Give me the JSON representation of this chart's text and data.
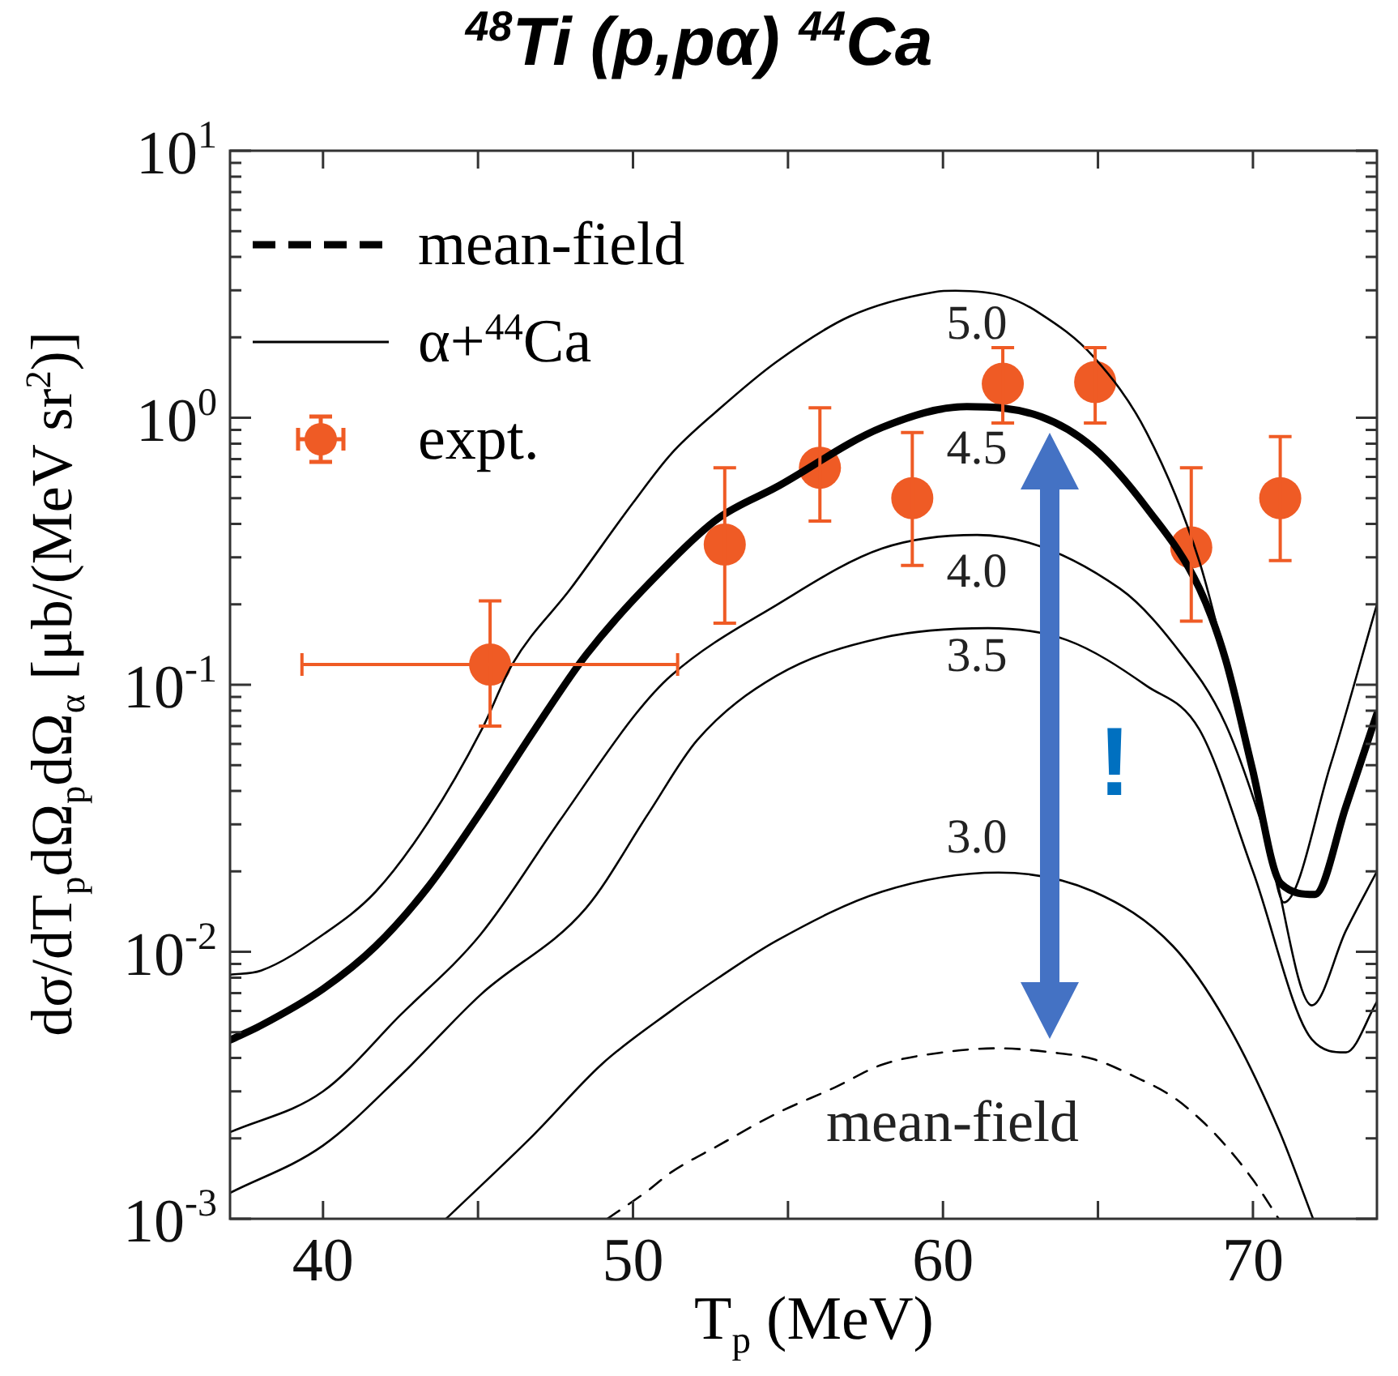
{
  "chart_data": {
    "type": "line",
    "title": "$^{48}$Ti (p,pα) $^{44}$Ca",
    "xlabel": "T$_{p}$ (MeV)",
    "ylabel": "dσ/dT$_{p}$dΩ$_{p}$dΩ$_{α}$ [μb/(MeV sr$^{2}$)]",
    "log": "y",
    "legend": "top left",
    "xlim": [
      37,
      74
    ],
    "xticks": [
      40,
      {
        "value": 45,
        "label": null
      },
      50,
      {
        "value": 55,
        "label": null
      },
      60,
      {
        "value": 65,
        "label": null
      },
      70
    ],
    "ylim": [
      0.001,
      10
    ],
    "yticks": [
      {
        "value": 0.001,
        "label": "10$^{-3}$"
      },
      {
        "value": 0.002,
        "label": null
      },
      {
        "value": 0.003,
        "label": null
      },
      {
        "value": 0.004,
        "label": null
      },
      {
        "value": 0.005,
        "label": null
      },
      {
        "value": 0.006,
        "label": null
      },
      {
        "value": 0.007,
        "label": null
      },
      {
        "value": 0.008,
        "label": null
      },
      {
        "value": 0.009,
        "label": null
      },
      {
        "value": 0.01,
        "label": "10$^{-2}$"
      },
      {
        "value": 0.02,
        "label": null
      },
      {
        "value": 0.03,
        "label": null
      },
      {
        "value": 0.04,
        "label": null
      },
      {
        "value": 0.05,
        "label": null
      },
      {
        "value": 0.06,
        "label": null
      },
      {
        "value": 0.07,
        "label": null
      },
      {
        "value": 0.08,
        "label": null
      },
      {
        "value": 0.09,
        "label": null
      },
      {
        "value": 0.1,
        "label": "10$^{-1}$"
      },
      {
        "value": 0.2,
        "label": null
      },
      {
        "value": 0.3,
        "label": null
      },
      {
        "value": 0.4,
        "label": null
      },
      {
        "value": 0.5,
        "label": null
      },
      {
        "value": 0.6,
        "label": null
      },
      {
        "value": 0.7,
        "label": null
      },
      {
        "value": 0.8,
        "label": null
      },
      {
        "value": 0.9,
        "label": null
      },
      {
        "value": 1,
        "label": "10$^{0}$"
      },
      {
        "value": 2,
        "label": null
      },
      {
        "value": 3,
        "label": null
      },
      {
        "value": 4,
        "label": null
      },
      {
        "value": 5,
        "label": null
      },
      {
        "value": 6,
        "label": null
      },
      {
        "value": 7,
        "label": null
      },
      {
        "value": 8,
        "label": null
      },
      {
        "value": 9,
        "label": null
      },
      {
        "value": 10,
        "label": "10$^{1}$"
      }
    ],
    "series": [
      {
        "name": "mean-field",
        "color": "#000000",
        "line_style": "dashed",
        "marker": "none",
        "x": [
          49.17,
          50.5,
          51.22,
          52.75,
          54.63,
          56.5,
          58.04,
          60,
          61.79,
          63.5,
          64.86,
          66.2,
          67.42,
          68.4,
          69.12,
          70.0,
          70.83
        ],
        "values": [
          0.001,
          0.00128,
          0.00149,
          0.00188,
          0.00248,
          0.0031,
          0.00378,
          0.0042,
          0.00435,
          0.0042,
          0.00396,
          0.0034,
          0.00286,
          0.0023,
          0.00188,
          0.0014,
          0.001
        ]
      },
      {
        "name": "α+$^{44}$Ca",
        "color": "#000000",
        "line_style": "solid",
        "marker": "none",
        "x": [
          37,
          38,
          40,
          41.7,
          43.41,
          45.12,
          46.1,
          48,
          50,
          51.22,
          52.75,
          54.63,
          57,
          59.75,
          60.4,
          62,
          63.1,
          64.86,
          66.57,
          68.27,
          69.5,
          70.5,
          71.0,
          72.5,
          74
        ],
        "values": [
          0.0082,
          0.0085,
          0.0116,
          0.0168,
          0.0308,
          0.068,
          0.119,
          0.23,
          0.48,
          0.73,
          1.07,
          1.62,
          2.4,
          2.96,
          2.99,
          2.85,
          2.47,
          1.69,
          0.88,
          0.29,
          0.08,
          0.025,
          0.0153,
          0.05,
          0.2
        ]
      },
      {
        "color": "#000000",
        "line_style": "solid",
        "marker": "none",
        "x": [
          37,
          38,
          40,
          41.7,
          43.41,
          45.12,
          46.83,
          48.5,
          51.22,
          52.75,
          54.63,
          58.04,
          60.77,
          63.15,
          64.86,
          66.57,
          68.27,
          69.12,
          69.97,
          70.9,
          72.0,
          73,
          74
        ],
        "values": [
          0.00467,
          0.0053,
          0.00726,
          0.0105,
          0.0176,
          0.0338,
          0.068,
          0.13,
          0.29,
          0.42,
          0.55,
          0.92,
          1.1,
          1.01,
          0.77,
          0.46,
          0.23,
          0.124,
          0.049,
          0.018,
          0.0164,
          0.035,
          0.078
        ]
      },
      {
        "color": "#000000",
        "line_style": "solid",
        "marker": "none",
        "x": [
          37,
          40,
          42.5,
          45.08,
          47.64,
          50.1,
          51.22,
          54.63,
          58.04,
          61.1,
          65.71,
          67.42,
          69.12,
          70.5,
          71.9,
          73,
          74
        ],
        "values": [
          0.00211,
          0.003,
          0.0058,
          0.0116,
          0.031,
          0.078,
          0.108,
          0.199,
          0.324,
          0.364,
          0.229,
          0.143,
          0.071,
          0.025,
          0.0063,
          0.012,
          0.02
        ]
      },
      {
        "color": "#000000",
        "line_style": "solid",
        "marker": "none",
        "x": [
          37,
          40,
          42.5,
          45.08,
          48.49,
          50.5,
          52.07,
          54.63,
          58.04,
          61.45,
          64.0,
          66.57,
          68.27,
          70.0,
          71.9,
          73.0,
          74
        ],
        "values": [
          0.00125,
          0.00188,
          0.00344,
          0.0069,
          0.0146,
          0.033,
          0.062,
          0.108,
          0.15,
          0.163,
          0.147,
          0.099,
          0.068,
          0.02,
          0.0047,
          0.0042,
          0.0065
        ]
      },
      {
        "color": "#000000",
        "line_style": "solid",
        "marker": "none",
        "x": [
          43.97,
          46.79,
          49,
          51.22,
          52.75,
          54.63,
          58.04,
          61.79,
          64.86,
          67.42,
          69.12,
          70.83,
          71.94
        ],
        "values": [
          0.001,
          0.00206,
          0.0038,
          0.006,
          0.00798,
          0.011,
          0.0168,
          0.0198,
          0.0168,
          0.0105,
          0.0055,
          0.00216,
          0.001
        ]
      },
      {
        "name": "expt.",
        "type": "scatter",
        "color": "#ef5b25",
        "marker": "circle",
        "x": [
          45.39,
          52.96,
          56.03,
          59.01,
          61.93,
          64.91,
          68.01,
          70.88
        ],
        "values": [
          0.119,
          0.335,
          0.65,
          0.5,
          1.34,
          1.36,
          0.327,
          0.5
        ],
        "errors": [
          [
            0.07,
            0.206
          ],
          [
            0.17,
            0.65
          ],
          [
            0.41,
            1.09
          ],
          [
            0.28,
            0.88
          ],
          [
            0.955,
            1.83
          ],
          [
            0.955,
            1.83
          ],
          [
            0.173,
            0.65
          ],
          [
            0.292,
            0.85
          ]
        ],
        "xerrors": [
          [
            39.32,
            51.44
          ],
          null,
          null,
          null,
          null,
          null,
          null,
          null
        ]
      }
    ],
    "annotations": [
      "5.0",
      "4.5",
      "4.0",
      "3.5",
      "3.0",
      "mean-field",
      "!"
    ]
  }
}
